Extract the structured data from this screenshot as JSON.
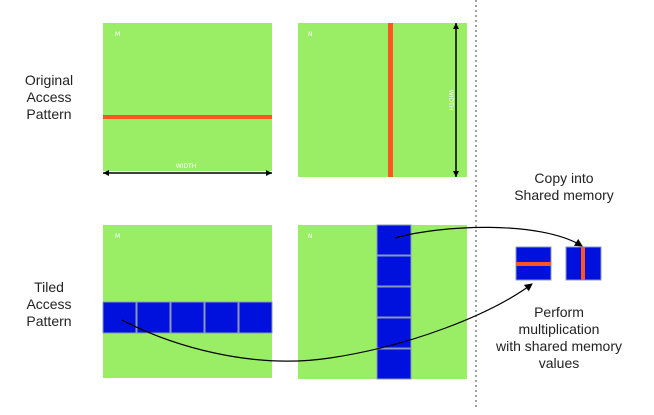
{
  "labels": {
    "original": "Original\nAccess\nPattern",
    "tiled": "Tiled\nAccess\nPattern",
    "copy": "Copy into\nShared memory",
    "perform": "Perform\nmultiplication\nwith shared memory\nvalues"
  },
  "matrix_labels": {
    "m": "M",
    "n": "N",
    "width_bottom": "WIDTH",
    "width_side": "WIDTH"
  },
  "colors": {
    "matrix_fill": "#99ee66",
    "tile_fill": "#0011dd",
    "highlight_line": "#ff5522",
    "arrow": "#000000"
  }
}
